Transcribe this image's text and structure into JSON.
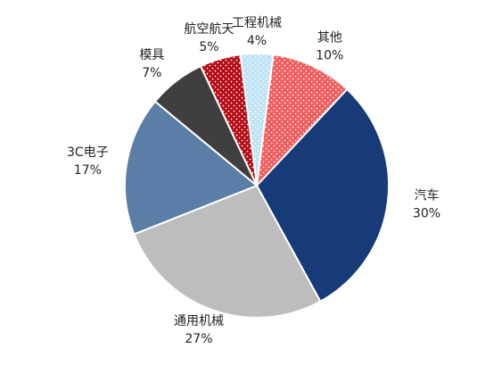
{
  "chart_data": {
    "type": "pie",
    "categories": [
      "工程机械",
      "其他",
      "汽车",
      "通用机械",
      "3C电子",
      "模具",
      "航空航天"
    ],
    "values": [
      4,
      10,
      30,
      27,
      17,
      7,
      5
    ],
    "value_labels": [
      "4%",
      "10%",
      "30%",
      "27%",
      "17%",
      "7%",
      "5%"
    ],
    "colors": [
      "#bfe3f5",
      "#f25b5b",
      "#173a78",
      "#bdbdbd",
      "#5b7ea6",
      "#3f3f3f",
      "#b50b14"
    ],
    "dotted": [
      true,
      true,
      false,
      false,
      false,
      false,
      true
    ]
  }
}
